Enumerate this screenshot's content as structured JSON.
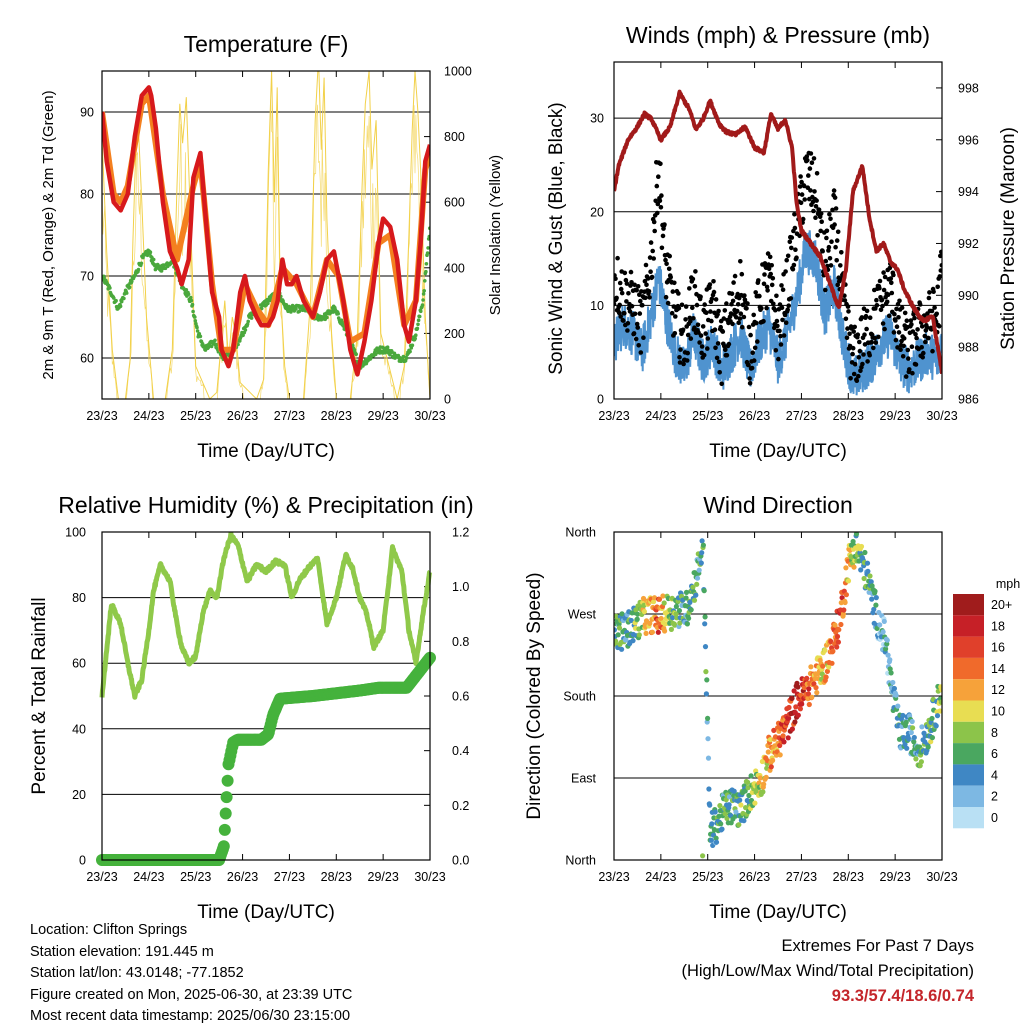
{
  "chart_data": [
    {
      "id": "temperature",
      "type": "line",
      "title": "Temperature (F)",
      "xlabel": "Time (Day/UTC)",
      "ylabel": "2m & 9m T (Red, Orange) & 2m Td (Green)",
      "y2label": "Solar Insolation (Yellow)",
      "xticks": [
        "23/23",
        "24/23",
        "25/23",
        "26/23",
        "27/23",
        "28/23",
        "29/23",
        "30/23"
      ],
      "xlim": [
        0,
        7
      ],
      "ylim": [
        55,
        95
      ],
      "yticks": [
        60,
        70,
        80,
        90
      ],
      "y2lim": [
        0,
        1000
      ],
      "y2ticks": [
        0,
        200,
        400,
        600,
        800,
        1000
      ],
      "grid": true,
      "colors": {
        "t2m": "#d7191c",
        "t9m": "#f4801f",
        "td": "#4aa83c",
        "solar": "#f2d14a"
      },
      "series": [
        {
          "key": "t2m",
          "x": [
            0,
            0.1,
            0.25,
            0.4,
            0.55,
            0.7,
            0.85,
            1.0,
            1.05,
            1.15,
            1.3,
            1.45,
            1.6,
            1.7,
            1.85,
            1.95,
            2.1,
            2.2,
            2.35,
            2.5,
            2.55,
            2.7,
            2.8,
            2.95,
            3.05,
            3.15,
            3.3,
            3.4,
            3.55,
            3.65,
            3.75,
            3.85,
            3.95,
            4.05,
            4.15,
            4.3,
            4.5,
            4.65,
            4.8,
            4.95,
            5.05,
            5.15,
            5.3,
            5.45,
            5.6,
            5.75,
            5.9,
            6.0,
            6.15,
            6.3,
            6.45,
            6.55,
            6.7,
            6.8,
            6.9,
            7.0
          ],
          "values": [
            90,
            84,
            79,
            78,
            80,
            87,
            92,
            93,
            92,
            88,
            79,
            73,
            71,
            69,
            72,
            82,
            85,
            78,
            68,
            65,
            61,
            59,
            61,
            68,
            70,
            67,
            65,
            64,
            64,
            65,
            67,
            72,
            69,
            69,
            70,
            67,
            65,
            68,
            72,
            73,
            70,
            67,
            61,
            58,
            62,
            67,
            74,
            77,
            76,
            72,
            64,
            62,
            67,
            74,
            84,
            86
          ]
        },
        {
          "key": "t9m",
          "x": [
            0,
            0.25,
            0.4,
            0.55,
            0.85,
            1.0,
            1.3,
            1.6,
            1.95,
            2.1,
            2.35,
            2.55,
            2.8,
            3.05,
            3.3,
            3.55,
            3.85,
            4.15,
            4.5,
            4.8,
            5.05,
            5.3,
            5.6,
            5.9,
            6.15,
            6.45,
            6.7,
            6.9,
            7.0
          ],
          "values": [
            90,
            80,
            79,
            81,
            91,
            92,
            80,
            72,
            81,
            84,
            69,
            61,
            61,
            69,
            66,
            64,
            71,
            69,
            65,
            72,
            70,
            62,
            63,
            74,
            75,
            64,
            67,
            83,
            85
          ]
        },
        {
          "key": "td",
          "x": [
            0,
            0.2,
            0.35,
            0.5,
            0.7,
            0.85,
            1.0,
            1.15,
            1.3,
            1.5,
            1.7,
            1.9,
            2.05,
            2.2,
            2.4,
            2.6,
            2.8,
            3.0,
            3.15,
            3.35,
            3.55,
            3.75,
            3.95,
            4.15,
            4.35,
            4.55,
            4.75,
            4.95,
            5.15,
            5.3,
            5.5,
            5.7,
            5.9,
            6.1,
            6.3,
            6.5,
            6.7,
            6.85,
            7.0
          ],
          "values": [
            70,
            68,
            66,
            68,
            70,
            72,
            73,
            71,
            71,
            72,
            69,
            67,
            63,
            61,
            62,
            60,
            61,
            63,
            65,
            66,
            67,
            68,
            66,
            66,
            66,
            65,
            65,
            66,
            64,
            62,
            59,
            60,
            61,
            61,
            60,
            60,
            63,
            67,
            76
          ]
        },
        {
          "key": "solar",
          "x": [
            0,
            0.1,
            0.22,
            0.35,
            0.5,
            0.6,
            0.66,
            0.72,
            0.78,
            0.85,
            0.95,
            1.1,
            1.35,
            1.5,
            1.6,
            1.66,
            1.72,
            1.8,
            1.9,
            2.0,
            2.3,
            2.45,
            2.55,
            2.62,
            2.7,
            2.78,
            2.85,
            2.95,
            3.3,
            3.45,
            3.55,
            3.62,
            3.68,
            3.74,
            3.8,
            3.9,
            4.0,
            4.3,
            4.45,
            4.55,
            4.62,
            4.68,
            4.74,
            4.8,
            4.9,
            5.0,
            5.3,
            5.45,
            5.55,
            5.62,
            5.7,
            5.76,
            5.85,
            5.95,
            6.3,
            6.45,
            6.55,
            6.62,
            6.68,
            6.74,
            6.8,
            6.9,
            7.0
          ],
          "values": [
            800,
            450,
            150,
            0,
            0,
            120,
            480,
            750,
            820,
            600,
            250,
            0,
            0,
            150,
            650,
            900,
            780,
            920,
            500,
            100,
            0,
            20,
            180,
            300,
            120,
            250,
            200,
            50,
            0,
            60,
            700,
            1000,
            600,
            950,
            350,
            100,
            0,
            0,
            300,
            850,
            1040,
            760,
            980,
            550,
            200,
            0,
            0,
            200,
            650,
            900,
            1000,
            700,
            850,
            200,
            0,
            100,
            500,
            820,
            1000,
            880,
            700,
            250,
            0
          ]
        }
      ]
    },
    {
      "id": "winds",
      "type": "line",
      "title": "Winds (mph) & Pressure (mb)",
      "xlabel": "Time (Day/UTC)",
      "ylabel": "Sonic Wind & Gust (Blue, Black)",
      "y2label": "Station Pressure (Maroon)",
      "xticks": [
        "23/23",
        "24/23",
        "25/23",
        "26/23",
        "27/23",
        "28/23",
        "29/23",
        "30/23"
      ],
      "xlim": [
        0,
        7
      ],
      "ylim": [
        0,
        36
      ],
      "yticks": [
        0,
        10,
        20,
        30
      ],
      "y2lim": [
        986,
        999
      ],
      "y2ticks": [
        986,
        988,
        990,
        992,
        994,
        996,
        998
      ],
      "grid": true,
      "colors": {
        "wind": "#4f93cf",
        "gust": "#000000",
        "pressure": "#a11a1a"
      },
      "series": [
        {
          "key": "wind",
          "x": [
            0,
            0.2,
            0.4,
            0.6,
            0.8,
            0.95,
            1.1,
            1.3,
            1.5,
            1.7,
            1.9,
            2.1,
            2.3,
            2.5,
            2.7,
            2.9,
            3.1,
            3.3,
            3.5,
            3.7,
            3.9,
            4.1,
            4.3,
            4.5,
            4.7,
            4.9,
            5.1,
            5.3,
            5.5,
            5.7,
            5.9,
            6.1,
            6.3,
            6.5,
            6.7,
            6.9,
            7.0
          ],
          "values": [
            6,
            8,
            7,
            5,
            9,
            13,
            9,
            5,
            3,
            7,
            4,
            6,
            3,
            5,
            7,
            3,
            6,
            8,
            4,
            7,
            11,
            16,
            15,
            9,
            12,
            6,
            2,
            3,
            4,
            6,
            7,
            4,
            3,
            4,
            5,
            4,
            6
          ]
        },
        {
          "key": "gust",
          "x": [
            0,
            0.2,
            0.4,
            0.6,
            0.8,
            0.95,
            1.1,
            1.3,
            1.5,
            1.7,
            1.9,
            2.1,
            2.3,
            2.5,
            2.7,
            2.9,
            3.1,
            3.3,
            3.5,
            3.7,
            3.9,
            4.1,
            4.3,
            4.5,
            4.7,
            4.9,
            5.1,
            5.3,
            5.5,
            5.7,
            5.9,
            6.1,
            6.3,
            6.5,
            6.7,
            6.9,
            7.0
          ],
          "values": [
            13,
            11,
            10,
            8,
            15,
            25,
            14,
            9,
            6,
            11,
            7,
            10,
            5,
            9,
            12,
            5,
            10,
            13,
            7,
            12,
            18,
            24,
            22,
            14,
            19,
            10,
            4,
            6,
            8,
            10,
            12,
            7,
            5,
            7,
            8,
            9,
            14
          ]
        },
        {
          "key": "pressure",
          "x": [
            0,
            0.1,
            0.3,
            0.5,
            0.65,
            0.8,
            1.0,
            1.2,
            1.4,
            1.6,
            1.75,
            1.9,
            2.05,
            2.25,
            2.4,
            2.6,
            2.8,
            3.0,
            3.2,
            3.35,
            3.5,
            3.65,
            3.8,
            3.9,
            4.0,
            4.2,
            4.4,
            4.6,
            4.8,
            4.95,
            5.1,
            5.3,
            5.45,
            5.6,
            5.75,
            5.9,
            6.05,
            6.2,
            6.4,
            6.6,
            6.8,
            7.0
          ],
          "values": [
            994,
            995,
            996,
            996.5,
            997,
            996.8,
            996,
            996.5,
            997.8,
            997.2,
            996.4,
            996.8,
            997.5,
            996.6,
            996.3,
            996.2,
            996.5,
            995.7,
            995.5,
            997,
            996.4,
            996.8,
            995.7,
            993.5,
            992.5,
            992,
            991.5,
            990.5,
            989.5,
            991,
            994,
            995,
            993,
            991.7,
            992,
            991.3,
            991,
            990.2,
            989.5,
            989,
            989.2,
            987
          ]
        }
      ]
    },
    {
      "id": "humidity",
      "type": "line",
      "title": "Relative Humidity (%) & Precipitation (in)",
      "xlabel": "Time (Day/UTC)",
      "ylabel": "Percent & Total Rainfall",
      "xticks": [
        "23/23",
        "24/23",
        "25/23",
        "26/23",
        "27/23",
        "28/23",
        "29/23",
        "30/23"
      ],
      "xlim": [
        0,
        7
      ],
      "ylim": [
        0,
        100
      ],
      "yticks": [
        0,
        20,
        40,
        60,
        80,
        100
      ],
      "y2lim": [
        0,
        1.2
      ],
      "y2ticks": [
        "0.0",
        "0.2",
        "0.4",
        "0.6",
        "0.8",
        "1.0",
        "1.2"
      ],
      "grid": true,
      "colors": {
        "rh": "#8fc94a",
        "precip": "#45b23c"
      },
      "series": [
        {
          "key": "rh",
          "x": [
            0,
            0.2,
            0.4,
            0.55,
            0.7,
            0.85,
            1.0,
            1.1,
            1.25,
            1.45,
            1.6,
            1.7,
            1.85,
            2.0,
            2.15,
            2.3,
            2.45,
            2.6,
            2.75,
            2.9,
            3.1,
            3.3,
            3.5,
            3.7,
            3.9,
            4.05,
            4.2,
            4.4,
            4.6,
            4.8,
            5.0,
            5.2,
            5.35,
            5.5,
            5.65,
            5.8,
            6.0,
            6.2,
            6.4,
            6.55,
            6.7,
            6.85,
            7.0
          ],
          "values": [
            50,
            78,
            72,
            60,
            50,
            55,
            70,
            82,
            90,
            85,
            72,
            65,
            60,
            62,
            75,
            82,
            80,
            92,
            99,
            96,
            85,
            90,
            88,
            91,
            90,
            80,
            85,
            89,
            92,
            72,
            80,
            93,
            89,
            80,
            75,
            65,
            70,
            95,
            88,
            70,
            60,
            75,
            88
          ]
        },
        {
          "key": "precip",
          "x": [
            0,
            1.0,
            2.0,
            2.5,
            2.6,
            2.7,
            2.8,
            2.9,
            3.2,
            3.4,
            3.55,
            3.65,
            3.8,
            4.5,
            5.0,
            5.5,
            5.9,
            6.5,
            7.0
          ],
          "values": [
            0,
            0,
            0,
            0,
            0.05,
            0.35,
            0.43,
            0.44,
            0.44,
            0.44,
            0.46,
            0.53,
            0.59,
            0.6,
            0.61,
            0.62,
            0.63,
            0.63,
            0.74
          ]
        }
      ]
    },
    {
      "id": "direction",
      "type": "scatter",
      "title": "Wind Direction",
      "xlabel": "Time (Day/UTC)",
      "ylabel": "Direction (Colored By Speed)",
      "xticks": [
        "23/23",
        "24/23",
        "25/23",
        "26/23",
        "27/23",
        "28/23",
        "29/23",
        "30/23"
      ],
      "xlim": [
        0,
        7
      ],
      "ylim": [
        0,
        360
      ],
      "ytick_labels": [
        "North",
        "East",
        "South",
        "West",
        "North"
      ],
      "grid": true,
      "colorbar": {
        "unit": "mph",
        "labels": [
          "20+",
          "18",
          "16",
          "14",
          "12",
          "10",
          "8",
          "6",
          "4",
          "2",
          "0"
        ],
        "colors": [
          "#a01c1c",
          "#c62027",
          "#e0402b",
          "#f06a2b",
          "#f6a23a",
          "#e8dd52",
          "#8cc44a",
          "#4aa760",
          "#3f87c4",
          "#7db8e3",
          "#b9e0f4"
        ]
      },
      "trend": {
        "x": [
          0,
          0.15,
          0.35,
          0.55,
          0.75,
          0.95,
          1.15,
          1.35,
          1.55,
          1.7,
          1.8,
          1.9,
          2.05,
          2.2,
          2.35,
          2.55,
          2.7,
          2.85,
          3.0,
          3.15,
          3.3,
          3.5,
          3.7,
          3.9,
          4.1,
          4.3,
          4.5,
          4.65,
          4.8,
          4.9,
          5.0,
          5.15,
          5.35,
          5.5,
          5.65,
          5.8,
          5.95,
          6.1,
          6.3,
          6.5,
          6.7,
          6.9,
          7.0
        ],
        "values": [
          255,
          250,
          255,
          265,
          270,
          268,
          272,
          275,
          275,
          300,
          320,
          350,
          30,
          40,
          55,
          60,
          55,
          70,
          80,
          90,
          115,
          130,
          150,
          175,
          185,
          200,
          215,
          235,
          260,
          290,
          325,
          345,
          320,
          290,
          260,
          240,
          180,
          140,
          140,
          120,
          140,
          170,
          190
        ],
        "speeds": [
          5,
          6,
          5,
          8,
          12,
          15,
          9,
          6,
          5,
          6,
          5,
          6,
          4,
          5,
          6,
          5,
          7,
          6,
          8,
          9,
          12,
          14,
          16,
          18,
          16,
          12,
          10,
          14,
          16,
          14,
          10,
          8,
          6,
          4,
          3,
          3,
          4,
          5,
          4,
          5,
          6,
          7,
          8
        ]
      }
    }
  ],
  "info": {
    "location": "Location: Clifton Springs",
    "elevation": "Station elevation: 191.445 m",
    "latlon": "Station lat/lon: 43.0148; -77.1852",
    "created": "Figure created on Mon, 2025-06-30, at 23:39 UTC",
    "recent": "Most recent data timestamp: 2025/06/30 23:15:00"
  },
  "extremes": {
    "line1": "Extremes For Past 7 Days",
    "line2": "(High/Low/Max Wind/Total Precipitation)",
    "values": "93.3/57.4/18.6/0.74"
  }
}
